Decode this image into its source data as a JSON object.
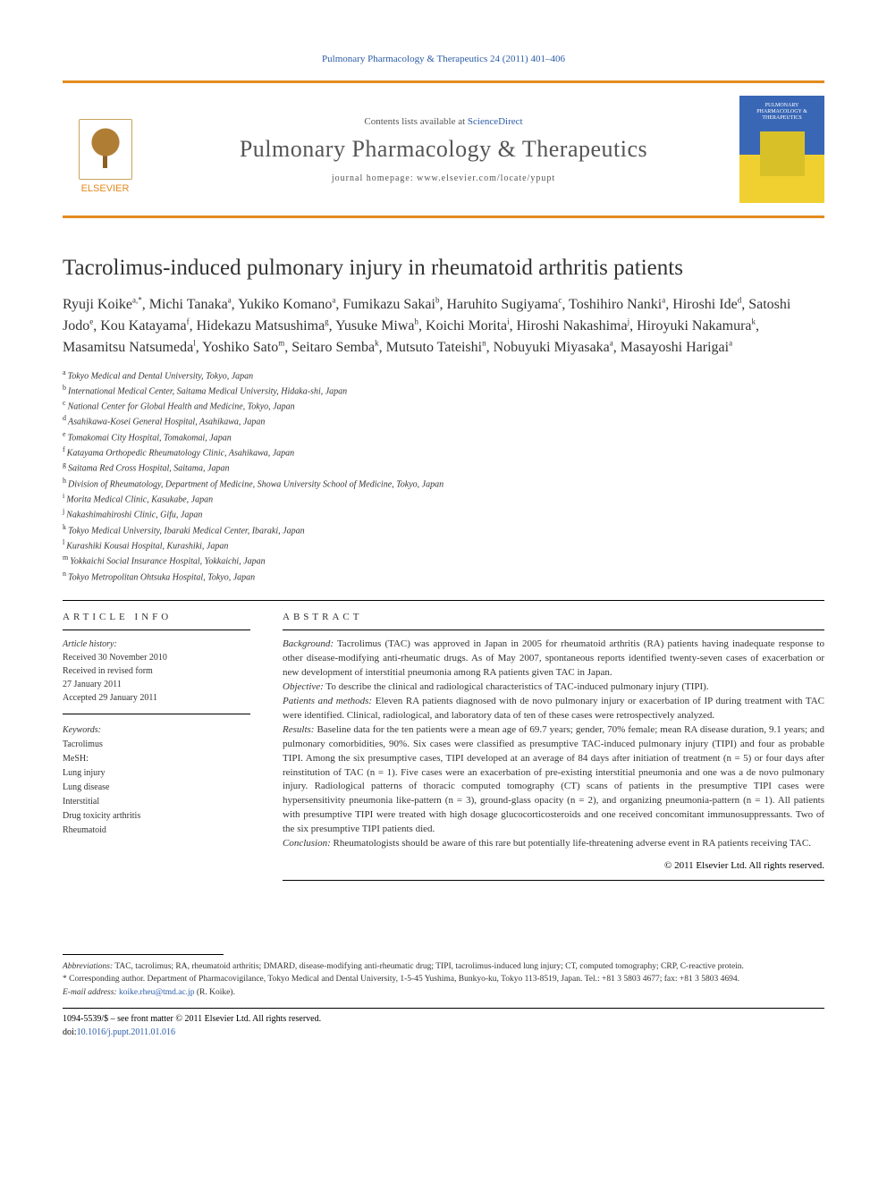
{
  "citation": "Pulmonary Pharmacology & Therapeutics 24 (2011) 401–406",
  "masthead": {
    "publisher": "ELSEVIER",
    "contents_prefix": "Contents lists available at ",
    "contents_link": "ScienceDirect",
    "journal": "Pulmonary Pharmacology & Therapeutics",
    "homepage_prefix": "journal homepage: ",
    "homepage_url": "www.elsevier.com/locate/ypupt",
    "cover_text": "PULMONARY PHARMACOLOGY & THERAPEUTICS"
  },
  "title": "Tacrolimus-induced pulmonary injury in rheumatoid arthritis patients",
  "authors": [
    {
      "name": "Ryuji Koike",
      "aff": "a,*"
    },
    {
      "name": "Michi Tanaka",
      "aff": "a"
    },
    {
      "name": "Yukiko Komano",
      "aff": "a"
    },
    {
      "name": "Fumikazu Sakai",
      "aff": "b"
    },
    {
      "name": "Haruhito Sugiyama",
      "aff": "c"
    },
    {
      "name": "Toshihiro Nanki",
      "aff": "a"
    },
    {
      "name": "Hiroshi Ide",
      "aff": "d"
    },
    {
      "name": "Satoshi Jodo",
      "aff": "e"
    },
    {
      "name": "Kou Katayama",
      "aff": "f"
    },
    {
      "name": "Hidekazu Matsushima",
      "aff": "g"
    },
    {
      "name": "Yusuke Miwa",
      "aff": "h"
    },
    {
      "name": "Koichi Morita",
      "aff": "i"
    },
    {
      "name": "Hiroshi Nakashima",
      "aff": "j"
    },
    {
      "name": "Hiroyuki Nakamura",
      "aff": "k"
    },
    {
      "name": "Masamitsu Natsumeda",
      "aff": "l"
    },
    {
      "name": "Yoshiko Sato",
      "aff": "m"
    },
    {
      "name": "Seitaro Semba",
      "aff": "k"
    },
    {
      "name": "Mutsuto Tateishi",
      "aff": "n"
    },
    {
      "name": "Nobuyuki Miyasaka",
      "aff": "a"
    },
    {
      "name": "Masayoshi Harigai",
      "aff": "a"
    }
  ],
  "affiliations": [
    {
      "key": "a",
      "text": "Tokyo Medical and Dental University, Tokyo, Japan"
    },
    {
      "key": "b",
      "text": "International Medical Center, Saitama Medical University, Hidaka-shi, Japan"
    },
    {
      "key": "c",
      "text": "National Center for Global Health and Medicine, Tokyo, Japan"
    },
    {
      "key": "d",
      "text": "Asahikawa-Kosei General Hospital, Asahikawa, Japan"
    },
    {
      "key": "e",
      "text": "Tomakomai City Hospital, Tomakomai, Japan"
    },
    {
      "key": "f",
      "text": "Katayama Orthopedic Rheumatology Clinic, Asahikawa, Japan"
    },
    {
      "key": "g",
      "text": "Saitama Red Cross Hospital, Saitama, Japan"
    },
    {
      "key": "h",
      "text": "Division of Rheumatology, Department of Medicine, Showa University School of Medicine, Tokyo, Japan"
    },
    {
      "key": "i",
      "text": "Morita Medical Clinic, Kasukabe, Japan"
    },
    {
      "key": "j",
      "text": "Nakashimahiroshi Clinic, Gifu, Japan"
    },
    {
      "key": "k",
      "text": "Tokyo Medical University, Ibaraki Medical Center, Ibaraki, Japan"
    },
    {
      "key": "l",
      "text": "Kurashiki Kousai Hospital, Kurashiki, Japan"
    },
    {
      "key": "m",
      "text": "Yokkaichi Social Insurance Hospital, Yokkaichi, Japan"
    },
    {
      "key": "n",
      "text": "Tokyo Metropolitan Ohtsuka Hospital, Tokyo, Japan"
    }
  ],
  "article_info": {
    "heading": "ARTICLE INFO",
    "history_head": "Article history:",
    "received": "Received 30 November 2010",
    "revised1": "Received in revised form",
    "revised2": "27 January 2011",
    "accepted": "Accepted 29 January 2011",
    "keywords_head": "Keywords:",
    "keywords": [
      "Tacrolimus",
      "MeSH:",
      "Lung injury",
      "Lung disease",
      "Interstitial",
      "Drug toxicity arthritis",
      "Rheumatoid"
    ]
  },
  "abstract": {
    "heading": "ABSTRACT",
    "sections": [
      {
        "label": "Background:",
        "text": " Tacrolimus (TAC) was approved in Japan in 2005 for rheumatoid arthritis (RA) patients having inadequate response to other disease-modifying anti-rheumatic drugs. As of May 2007, spontaneous reports identified twenty-seven cases of exacerbation or new development of interstitial pneumonia among RA patients given TAC in Japan."
      },
      {
        "label": "Objective:",
        "text": " To describe the clinical and radiological characteristics of TAC-induced pulmonary injury (TIPI)."
      },
      {
        "label": "Patients and methods:",
        "text": " Eleven RA patients diagnosed with de novo pulmonary injury or exacerbation of IP during treatment with TAC were identified. Clinical, radiological, and laboratory data of ten of these cases were retrospectively analyzed."
      },
      {
        "label": "Results:",
        "text": " Baseline data for the ten patients were a mean age of 69.7 years; gender, 70% female; mean RA disease duration, 9.1 years; and pulmonary comorbidities, 90%. Six cases were classified as presumptive TAC-induced pulmonary injury (TIPI) and four as probable TIPI. Among the six presumptive cases, TIPI developed at an average of 84 days after initiation of treatment (n = 5) or four days after reinstitution of TAC (n = 1). Five cases were an exacerbation of pre-existing interstitial pneumonia and one was a de novo pulmonary injury. Radiological patterns of thoracic computed tomography (CT) scans of patients in the presumptive TIPI cases were hypersensitivity pneumonia like-pattern (n = 3), ground-glass opacity (n = 2), and organizing pneumonia-pattern (n = 1). All patients with presumptive TIPI were treated with high dosage glucocorticosteroids and one received concomitant immunosuppressants. Two of the six presumptive TIPI patients died."
      },
      {
        "label": "Conclusion:",
        "text": " Rheumatologists should be aware of this rare but potentially life-threatening adverse event in RA patients receiving TAC."
      }
    ],
    "copyright": "© 2011 Elsevier Ltd. All rights reserved."
  },
  "footnotes": {
    "abbrev_label": "Abbreviations:",
    "abbrev_text": " TAC, tacrolimus; RA, rheumatoid arthritis; DMARD, disease-modifying anti-rheumatic drug; TIPI, tacrolimus-induced lung injury; CT, computed tomography; CRP, C-reactive protein.",
    "corresp_marker": "* ",
    "corresp_text": "Corresponding author. Department of Pharmacovigilance, Tokyo Medical and Dental University, 1-5-45 Yushima, Bunkyo-ku, Tokyo 113-8519, Japan. Tel.: +81 3 5803 4677; fax: +81 3 5803 4694.",
    "email_label": "E-mail address:",
    "email": "koike.rheu@tmd.ac.jp",
    "email_name": " (R. Koike)."
  },
  "doi": {
    "line1": "1094-5539/$ – see front matter © 2011 Elsevier Ltd. All rights reserved.",
    "prefix": "doi:",
    "link": "10.1016/j.pupt.2011.01.016"
  },
  "colors": {
    "orange": "#e48b1e",
    "blue": "#2b5ca8",
    "cover_blue": "#3a67b5",
    "cover_yellow": "#f0d030"
  }
}
